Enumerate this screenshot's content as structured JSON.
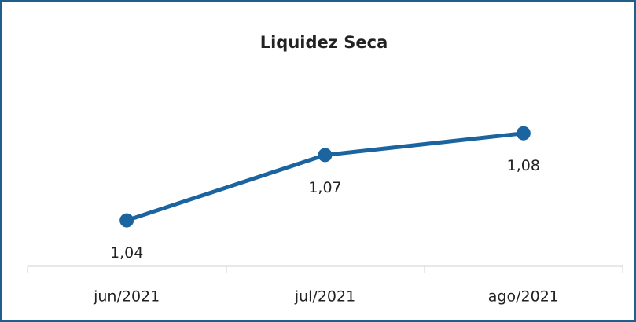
{
  "chart_data": {
    "type": "line",
    "title": "Liquidez Seca",
    "categories": [
      "jun/2021",
      "jul/2021",
      "ago/2021"
    ],
    "series": [
      {
        "name": "Liquidez Seca",
        "color": "#1b64a0",
        "values": [
          1.04,
          1.07,
          1.08
        ],
        "value_labels": [
          "1,04",
          "1,07",
          "1,08"
        ]
      }
    ],
    "ylim": [
      1.02,
      1.09
    ],
    "grid": false
  }
}
